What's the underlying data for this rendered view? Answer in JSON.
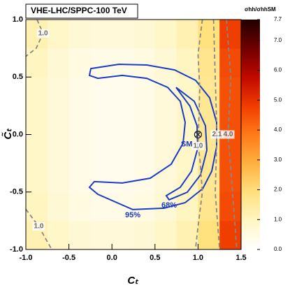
{
  "chart_data": {
    "type": "heatmap",
    "title": "VHE-LHC/SPPC-100 TeV",
    "x_label": "Cₜ",
    "y_label": "C̃ₜ",
    "colorbar_label": "σhh/σhhSM",
    "x_edges": [
      -1.0,
      -0.75,
      -0.5,
      -0.25,
      0.0,
      0.25,
      0.5,
      0.75,
      1.0,
      1.25,
      1.5
    ],
    "y_edges": [
      -1.0,
      -0.75,
      -0.5,
      -0.25,
      0.0,
      0.25,
      0.5,
      0.75,
      1.0
    ],
    "z": [
      [
        1.2,
        0.9,
        0.7,
        0.6,
        0.6,
        0.7,
        0.9,
        1.2,
        1.9,
        4.8
      ],
      [
        1.0,
        0.7,
        0.5,
        0.4,
        0.4,
        0.5,
        0.7,
        1.0,
        1.7,
        4.6
      ],
      [
        0.9,
        0.6,
        0.4,
        0.3,
        0.3,
        0.4,
        0.6,
        0.9,
        1.6,
        4.5
      ],
      [
        0.9,
        0.6,
        0.4,
        0.3,
        0.3,
        0.4,
        0.6,
        0.9,
        1.6,
        4.5
      ],
      [
        0.9,
        0.6,
        0.4,
        0.3,
        0.3,
        0.4,
        0.6,
        0.9,
        1.6,
        4.5
      ],
      [
        0.9,
        0.6,
        0.4,
        0.3,
        0.3,
        0.4,
        0.6,
        0.9,
        1.6,
        4.5
      ],
      [
        1.0,
        0.7,
        0.5,
        0.4,
        0.4,
        0.5,
        0.7,
        1.0,
        1.7,
        4.6
      ],
      [
        1.2,
        0.9,
        0.7,
        0.6,
        0.6,
        0.7,
        0.9,
        1.2,
        1.9,
        4.8
      ]
    ],
    "zlim": [
      0,
      7.7
    ],
    "colorscale": [
      "#ffffff",
      "#fff6c4",
      "#ffe07c",
      "#ffb040",
      "#ff7a18",
      "#f03c00",
      "#c00800",
      "#700000",
      "#200000"
    ],
    "xlim": [
      -1.0,
      1.5
    ],
    "ylim": [
      -1.0,
      1.0
    ],
    "xticks": [
      {
        "value": -1.0,
        "label": "-1.0"
      },
      {
        "value": -0.5,
        "label": "-0.5"
      },
      {
        "value": 0.0,
        "label": "0.0"
      },
      {
        "value": 0.5,
        "label": "0.5"
      },
      {
        "value": 1.0,
        "label": "1.0"
      },
      {
        "value": 1.5,
        "label": "1.5"
      }
    ],
    "yticks": [
      {
        "value": -1.0,
        "label": "-1.0"
      },
      {
        "value": -0.5,
        "label": "-0.5"
      },
      {
        "value": 0.0,
        "label": "0.0"
      },
      {
        "value": 0.5,
        "label": "0.5"
      },
      {
        "value": 1.0,
        "label": "1.0"
      }
    ],
    "zticks": [
      {
        "value": 0,
        "label": "0.0"
      },
      {
        "value": 1,
        "label": "1.0"
      },
      {
        "value": 2,
        "label": "2.0"
      },
      {
        "value": 3,
        "label": "3.0"
      },
      {
        "value": 4,
        "label": "4.0"
      },
      {
        "value": 5,
        "label": "5.0"
      },
      {
        "value": 6,
        "label": "6.0"
      },
      {
        "value": 7,
        "label": "7.0"
      },
      {
        "value": 7.7,
        "label": "7.7"
      }
    ],
    "contours": [
      {
        "label": "95%",
        "color": "#1a3cc8",
        "dashed": false,
        "closed": true,
        "x": [
          -0.245,
          0.08,
          0.404,
          0.729,
          0.972,
          1.135,
          1.216,
          1.216,
          1.159,
          1.054,
          0.851,
          0.607,
          0.242,
          -0.164,
          -0.261,
          -0.205,
          0.12,
          0.445,
          0.688,
          0.826,
          0.851,
          0.794,
          0.648,
          0.404,
          0.12,
          -0.164,
          -0.261
        ],
        "y": [
          0.574,
          0.611,
          0.605,
          0.562,
          0.471,
          0.319,
          0.106,
          -0.106,
          -0.319,
          -0.471,
          -0.593,
          -0.641,
          -0.653,
          -0.52,
          -0.459,
          -0.41,
          -0.422,
          -0.38,
          -0.258,
          -0.076,
          0.106,
          0.289,
          0.41,
          0.489,
          0.514,
          0.489,
          0.514
        ]
      },
      {
        "label": "68%",
        "color": "#1a3cc8",
        "dashed": false,
        "closed": true,
        "x": [
          0.745,
          0.956,
          1.086,
          1.102,
          1.029,
          0.875,
          0.664,
          0.631,
          0.794,
          0.924,
          0.997,
          0.989,
          0.907
        ],
        "y": [
          0.41,
          0.289,
          0.076,
          -0.137,
          -0.35,
          -0.502,
          -0.568,
          -0.532,
          -0.459,
          -0.319,
          -0.119,
          0.076,
          0.246
        ]
      },
      {
        "label": "1.0",
        "color": "#888888",
        "dashed": true,
        "closed": false,
        "x": [
          -0.87,
          -0.8,
          -0.88,
          -1.0
        ],
        "y": [
          1.0,
          0.88,
          0.75,
          0.68
        ]
      },
      {
        "label": "1.0",
        "color": "#888888",
        "dashed": true,
        "closed": false,
        "x": [
          -1.0,
          -0.85,
          -0.7
        ],
        "y": [
          -0.65,
          -0.8,
          -1.0
        ]
      },
      {
        "label": "1.0",
        "color": "#888888",
        "dashed": true,
        "closed": false,
        "x": [
          1.05,
          1.0,
          1.02,
          1.0,
          1.02,
          1.05,
          1.0,
          0.97
        ],
        "y": [
          1.0,
          0.7,
          0.4,
          -0.1,
          -0.2,
          -0.5,
          -0.8,
          -1.0
        ]
      },
      {
        "label": "2.1",
        "color": "#888888",
        "dashed": true,
        "closed": false,
        "x": [
          1.18,
          1.2,
          1.22,
          1.2,
          1.25
        ],
        "y": [
          1.0,
          0.5,
          0.0,
          -0.5,
          -1.0
        ]
      },
      {
        "label": "4.0",
        "color": "#888888",
        "dashed": true,
        "closed": false,
        "x": [
          1.33,
          1.38,
          1.35,
          1.4,
          1.45
        ],
        "y": [
          1.0,
          0.5,
          0.0,
          -0.5,
          -1.0
        ]
      }
    ],
    "sm": {
      "label": "SM",
      "x": 1.0,
      "y": 0.0
    }
  }
}
